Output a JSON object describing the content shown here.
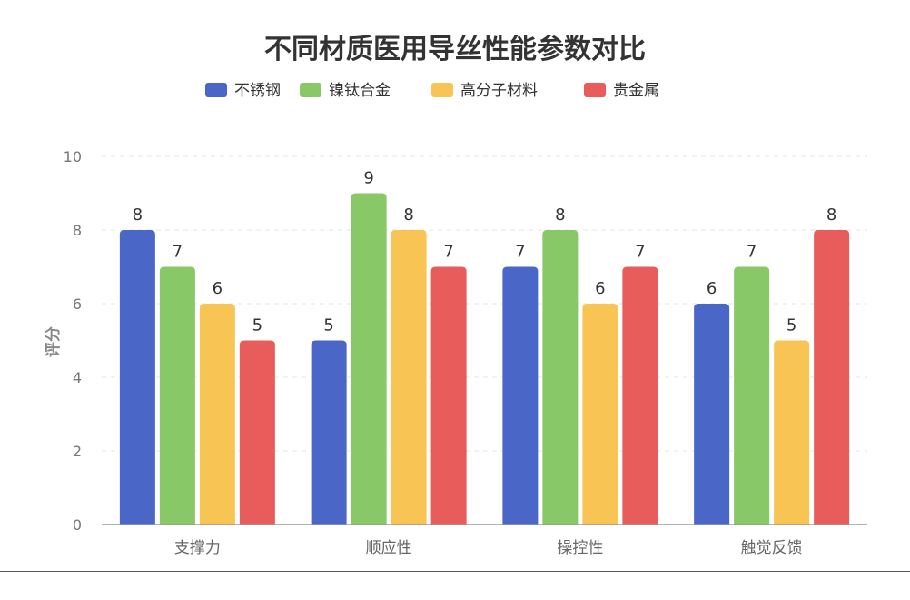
{
  "chart_data": {
    "type": "bar",
    "title": "不同材质医用导丝性能参数对比",
    "xlabel": "",
    "ylabel": "评分",
    "ylim": [
      0,
      10
    ],
    "yticks": [
      0,
      2,
      4,
      6,
      8,
      10
    ],
    "grid": true,
    "legend_position": "top",
    "categories": [
      "支撑力",
      "顺应性",
      "操控性",
      "触觉反馈"
    ],
    "series": [
      {
        "name": "不锈钢",
        "color": "#4a67c8",
        "values": [
          8,
          5,
          7,
          6
        ]
      },
      {
        "name": "镍钛合金",
        "color": "#88c866",
        "values": [
          7,
          9,
          8,
          7
        ]
      },
      {
        "name": "高分子材料",
        "color": "#f8c554",
        "values": [
          6,
          8,
          6,
          5
        ]
      },
      {
        "name": "贵金属",
        "color": "#e85c5c",
        "values": [
          5,
          7,
          7,
          8
        ]
      }
    ]
  }
}
